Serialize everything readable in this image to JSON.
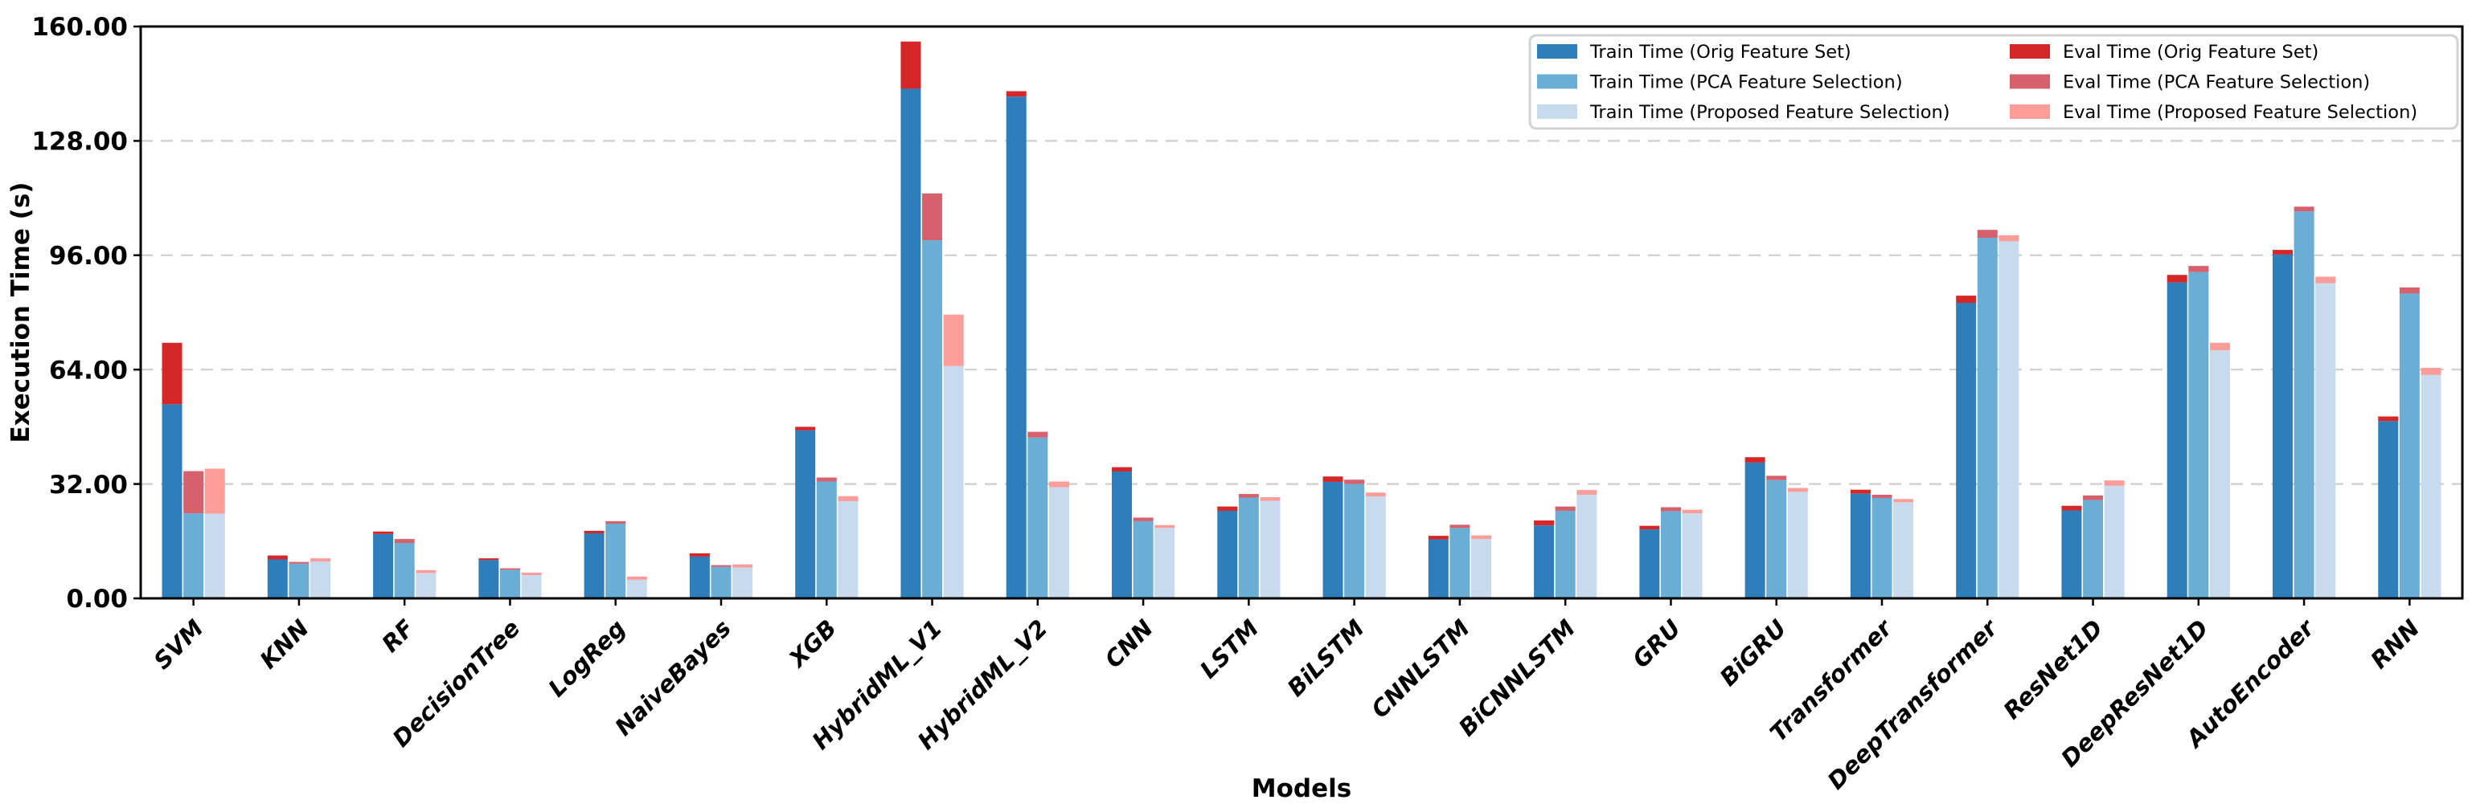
{
  "chart_data": {
    "type": "bar",
    "title": "",
    "xlabel": "Models",
    "ylabel": "Execution Time (s)",
    "ylim": [
      0,
      160
    ],
    "yticks": [
      0,
      32,
      64,
      96,
      128,
      160
    ],
    "ytick_labels": [
      "0.00",
      "32.00",
      "64.00",
      "96.00",
      "128.00",
      "160.00"
    ],
    "grid": "horizontal dashed",
    "grid_color": "#cecece",
    "legend_position": "upper right inside, 2 columns",
    "bar_style": "three stacked bars per model: train segment with eval segment on top, one bar per feature-selection variant",
    "categories": [
      "SVM",
      "KNN",
      "RF",
      "DecisionTree",
      "LogReg",
      "NaiveBayes",
      "XGB",
      "HybridML_V1",
      "HybridML_V2",
      "CNN",
      "LSTM",
      "BiLSTM",
      "CNNLSTM",
      "BiCNNLSTM",
      "GRU",
      "BiGRU",
      "Transformer",
      "DeepTransformer",
      "ResNet1D",
      "DeepResNet1D",
      "AutoEncoder",
      "RNN"
    ],
    "series": [
      {
        "name": "Train Time (Orig Feature Set)",
        "role": "train",
        "variant": "orig",
        "color": "#2f7ebc",
        "values": [
          54.3,
          10.9,
          18.0,
          10.7,
          18.2,
          11.7,
          47.0,
          142.6,
          140.4,
          35.5,
          24.5,
          32.6,
          16.5,
          20.4,
          19.3,
          38.0,
          29.3,
          82.7,
          24.6,
          88.4,
          96.2,
          49.6
        ]
      },
      {
        "name": "Train Time (PCA Feature Selection)",
        "role": "train",
        "variant": "pca",
        "color": "#6aaed6",
        "values": [
          23.8,
          9.7,
          15.5,
          8.0,
          20.9,
          8.8,
          32.7,
          100.2,
          45.0,
          21.6,
          28.2,
          32.0,
          19.7,
          24.5,
          24.4,
          33.1,
          28.1,
          100.9,
          27.5,
          91.3,
          108.3,
          85.3
        ]
      },
      {
        "name": "Train Time (Proposed Feature Selection)",
        "role": "train",
        "variant": "proposed",
        "color": "#c8daee",
        "values": [
          23.7,
          10.3,
          7.1,
          6.5,
          5.2,
          8.6,
          27.2,
          65.0,
          31.1,
          19.7,
          27.3,
          28.5,
          16.6,
          29.0,
          23.8,
          29.8,
          26.9,
          99.9,
          31.5,
          69.4,
          88.2,
          62.5
        ]
      },
      {
        "name": "Eval Time (Orig Feature Set)",
        "role": "eval",
        "variant": "orig",
        "color": "#d62728",
        "values": [
          17.2,
          1.1,
          0.7,
          0.5,
          0.7,
          0.9,
          1.0,
          13.2,
          1.5,
          1.2,
          1.2,
          1.5,
          1.0,
          1.4,
          1.0,
          1.5,
          1.1,
          2.0,
          1.3,
          2.1,
          1.3,
          1.3
        ]
      },
      {
        "name": "Eval Time (PCA Feature Selection)",
        "role": "eval",
        "variant": "pca",
        "color": "#d6606c",
        "values": [
          11.8,
          0.5,
          1.1,
          0.4,
          0.7,
          0.5,
          1.1,
          13.1,
          1.6,
          1.0,
          1.0,
          1.2,
          0.9,
          1.2,
          1.1,
          1.2,
          0.9,
          2.2,
          1.3,
          1.7,
          1.3,
          1.7
        ]
      },
      {
        "name": "Eval Time (Proposed Feature Selection)",
        "role": "eval",
        "variant": "proposed",
        "color": "#fc9d99",
        "values": [
          12.6,
          0.9,
          0.8,
          0.7,
          0.9,
          0.9,
          1.4,
          14.4,
          1.6,
          0.8,
          1.0,
          1.1,
          1.0,
          1.3,
          1.0,
          1.1,
          0.9,
          1.7,
          1.5,
          2.1,
          1.8,
          2.0
        ]
      }
    ]
  }
}
